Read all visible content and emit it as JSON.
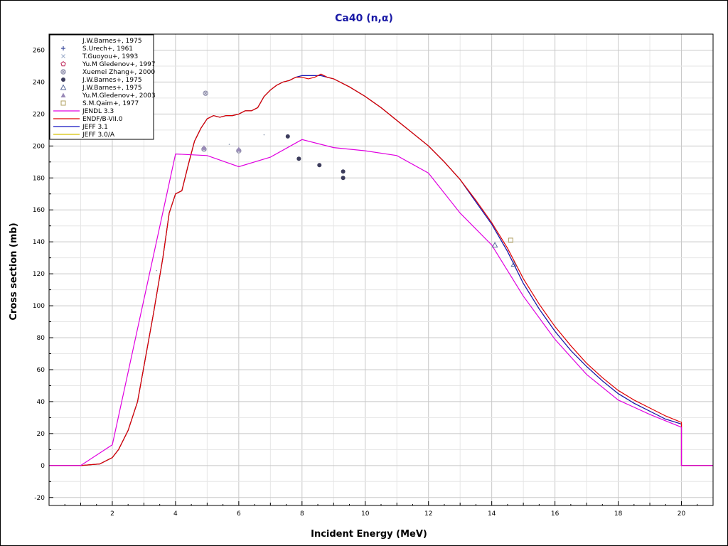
{
  "chart_data": {
    "type": "line",
    "title": "Ca40 (n,α)",
    "xlabel": "Incident Energy (MeV)",
    "ylabel": "Cross section (mb)",
    "xlim": [
      0,
      21
    ],
    "ylim": [
      -25,
      270
    ],
    "x_ticks": [
      2,
      4,
      6,
      8,
      10,
      12,
      14,
      16,
      18,
      20
    ],
    "y_ticks": [
      -20,
      0,
      20,
      40,
      60,
      80,
      100,
      120,
      140,
      160,
      180,
      200,
      220,
      240,
      260
    ],
    "grid": true,
    "legend_position": "top-left",
    "series": [
      {
        "name": "JENDL 3.3",
        "color": "#e000e0",
        "x": [
          0,
          1,
          2,
          4,
          5,
          6,
          7,
          8,
          9,
          10,
          11,
          12,
          13,
          14,
          15,
          16,
          17,
          18,
          19,
          20,
          20,
          21
        ],
        "y": [
          0,
          0,
          13,
          195,
          194,
          187,
          193,
          204,
          199,
          197,
          194,
          183,
          158,
          138,
          106,
          79,
          57,
          41,
          32,
          24,
          0,
          0
        ]
      },
      {
        "name": "ENDF/B-VII.0",
        "color": "#e00000",
        "x": [
          0,
          1,
          1.6,
          2,
          2.2,
          2.5,
          2.8,
          3,
          3.3,
          3.6,
          3.8,
          4,
          4.2,
          4.4,
          4.6,
          4.8,
          5,
          5.2,
          5.4,
          5.6,
          5.8,
          6,
          6.2,
          6.4,
          6.6,
          6.8,
          7,
          7.2,
          7.4,
          7.6,
          7.8,
          8,
          8.2,
          8.4,
          8.6,
          8.8,
          9,
          9.5,
          10,
          10.5,
          11,
          11.5,
          12,
          12.5,
          13,
          13.5,
          14,
          14.5,
          15,
          15.5,
          16,
          16.5,
          17,
          17.5,
          18,
          18.5,
          19,
          19.5,
          20,
          20,
          21
        ],
        "y": [
          0,
          0,
          1,
          5,
          10,
          22,
          40,
          62,
          95,
          130,
          158,
          170,
          172,
          188,
          203,
          211,
          217,
          219,
          218,
          219,
          219,
          220,
          222,
          222,
          224,
          231,
          235,
          238,
          240,
          241,
          243,
          243,
          242,
          243,
          245,
          243,
          242,
          237,
          231,
          224,
          216,
          208,
          200,
          190,
          179,
          166,
          152,
          136,
          117,
          101,
          87,
          75,
          64,
          55,
          47,
          41,
          36,
          31,
          27,
          0,
          0
        ]
      },
      {
        "name": "JEFF 3.1",
        "color": "#1010c0",
        "x": [
          0,
          1,
          1.6,
          2,
          2.2,
          2.5,
          2.8,
          3,
          3.3,
          3.6,
          3.8,
          4,
          4.2,
          4.4,
          4.6,
          4.8,
          5,
          5.2,
          5.4,
          5.6,
          5.8,
          6,
          6.2,
          6.4,
          6.6,
          6.8,
          7,
          7.2,
          7.4,
          7.6,
          7.8,
          8,
          8.2,
          8.4,
          8.6,
          8.8,
          9,
          9.5,
          10,
          10.5,
          11,
          11.5,
          12,
          12.5,
          13,
          13.5,
          14,
          14.5,
          15,
          15.5,
          16,
          16.5,
          17,
          17.5,
          18,
          18.5,
          19,
          19.5,
          20,
          20,
          21
        ],
        "y": [
          0,
          0,
          1,
          5,
          10,
          22,
          40,
          62,
          95,
          130,
          158,
          170,
          172,
          188,
          203,
          211,
          217,
          219,
          218,
          219,
          219,
          220,
          222,
          222,
          224,
          231,
          235,
          238,
          240,
          241,
          243,
          244,
          244,
          244,
          244,
          243,
          242,
          237,
          231,
          224,
          216,
          208,
          200,
          190,
          179,
          165,
          151,
          134,
          114,
          98,
          84,
          72,
          62,
          53,
          45,
          39,
          34,
          29,
          26,
          0,
          0
        ]
      },
      {
        "name": "JEFF 3.0/A",
        "color": "#d8c000",
        "x": [
          0,
          1,
          1.6,
          2,
          2.2,
          2.5,
          2.8,
          3,
          3.3,
          3.6,
          3.8,
          4,
          4.2,
          4.4,
          4.6,
          4.8,
          5,
          5.2,
          5.4,
          5.6,
          5.8,
          6,
          6.2,
          6.4,
          6.6,
          6.8,
          7,
          7.2,
          7.4,
          7.6,
          7.8,
          8,
          8.2,
          8.4,
          8.6,
          8.8,
          9,
          9.5,
          10,
          10.5,
          11,
          11.5,
          12,
          12.5,
          13,
          13.5,
          14,
          14.5,
          15,
          15.5,
          16,
          16.5,
          17,
          17.5,
          18,
          18.5,
          19,
          19.5,
          20,
          20,
          21
        ],
        "y": [
          0,
          0,
          1,
          5,
          10,
          22,
          40,
          62,
          95,
          130,
          158,
          170,
          172,
          188,
          203,
          211,
          217,
          219,
          218,
          219,
          219,
          220,
          222,
          222,
          224,
          231,
          235,
          238,
          240,
          241,
          243,
          244,
          244,
          244,
          244,
          243,
          242,
          237,
          231,
          224,
          216,
          208,
          200,
          190,
          179,
          165,
          151,
          134,
          114,
          98,
          84,
          72,
          62,
          53,
          45,
          39,
          34,
          29,
          26,
          0,
          0
        ]
      }
    ],
    "experimental": [
      {
        "name": "J.W.Barnes+, 1975",
        "marker": "dot",
        "color": "#8c9ab0",
        "points": [
          [
            3.4,
            122
          ],
          [
            5.7,
            201
          ],
          [
            6.8,
            207
          ]
        ]
      },
      {
        "name": "S.Urech+, 1961",
        "marker": "plus",
        "color": "#3c4c9c",
        "points": []
      },
      {
        "name": "T.Guoyou+, 1993",
        "marker": "cross",
        "color": "#9aaac8",
        "points": []
      },
      {
        "name": "Yu.M Gledenov+, 1997",
        "marker": "pentagon",
        "color": "#c03060",
        "points": []
      },
      {
        "name": "Xuemei Zhang+, 2000",
        "marker": "ring-x",
        "color": "#8c8ca8",
        "points": [
          [
            4.95,
            233
          ],
          [
            4.9,
            198
          ],
          [
            6.0,
            197
          ]
        ]
      },
      {
        "name": "J.W.Barnes+, 1975",
        "marker": "filled-circle",
        "color": "#3c3c5c",
        "points": [
          [
            7.55,
            206
          ],
          [
            7.9,
            192
          ],
          [
            8.55,
            188
          ],
          [
            9.3,
            184
          ],
          [
            9.3,
            180
          ]
        ]
      },
      {
        "name": "J.W.Barnes+, 1975",
        "marker": "triangle",
        "color": "#5a6a9a",
        "points": [
          [
            14.1,
            138
          ],
          [
            14.7,
            126
          ]
        ]
      },
      {
        "name": "Yu.M.Gledenov+, 2003",
        "marker": "filled-triangle",
        "color": "#9a8ab8",
        "points": [
          [
            4.9,
            199
          ],
          [
            6.0,
            198
          ]
        ]
      },
      {
        "name": "S.M.Qaim+, 1977",
        "marker": "square",
        "color": "#b0a060",
        "points": [
          [
            14.6,
            141
          ]
        ]
      }
    ]
  }
}
